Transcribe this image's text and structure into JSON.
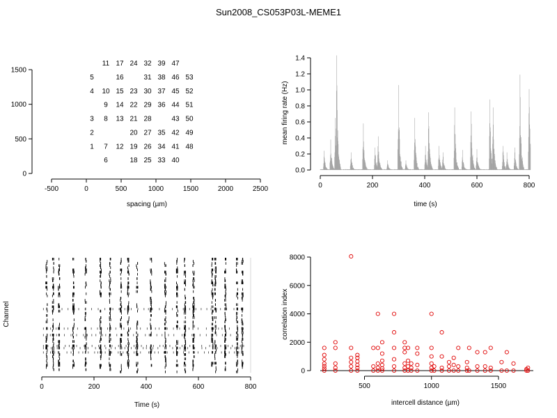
{
  "figure_title": "Sun2008_CS053P03L-MEME1",
  "chart_data": [
    {
      "type": "scatter",
      "panel": "electrode-layout",
      "xlabel": "spacing (µm)",
      "ylabel": "",
      "xlim": [
        -500,
        2500
      ],
      "ylim": [
        0,
        1500
      ],
      "xticks": [
        -500,
        0,
        500,
        1000,
        1500,
        2000,
        2500
      ],
      "yticks": [
        0,
        500,
        1000,
        1500
      ],
      "grid": false,
      "electrodes": [
        {
          "label": "1",
          "x": 200,
          "y": 400
        },
        {
          "label": "2",
          "x": 200,
          "y": 600
        },
        {
          "label": "3",
          "x": 200,
          "y": 800
        },
        {
          "label": "4",
          "x": 200,
          "y": 1200
        },
        {
          "label": "5",
          "x": 200,
          "y": 1400
        },
        {
          "label": "6",
          "x": 400,
          "y": 200
        },
        {
          "label": "7",
          "x": 400,
          "y": 400
        },
        {
          "label": "8",
          "x": 400,
          "y": 800
        },
        {
          "label": "9",
          "x": 400,
          "y": 1000
        },
        {
          "label": "10",
          "x": 400,
          "y": 1200
        },
        {
          "label": "11",
          "x": 400,
          "y": 1600
        },
        {
          "label": "12",
          "x": 600,
          "y": 400
        },
        {
          "label": "13",
          "x": 600,
          "y": 800
        },
        {
          "label": "14",
          "x": 600,
          "y": 1000
        },
        {
          "label": "15",
          "x": 600,
          "y": 1200
        },
        {
          "label": "16",
          "x": 600,
          "y": 1400
        },
        {
          "label": "17",
          "x": 600,
          "y": 1600
        },
        {
          "label": "18",
          "x": 800,
          "y": 200
        },
        {
          "label": "19",
          "x": 800,
          "y": 400
        },
        {
          "label": "20",
          "x": 800,
          "y": 600
        },
        {
          "label": "21",
          "x": 800,
          "y": 800
        },
        {
          "label": "22",
          "x": 800,
          "y": 1000
        },
        {
          "label": "23",
          "x": 800,
          "y": 1200
        },
        {
          "label": "24",
          "x": 800,
          "y": 1600
        },
        {
          "label": "25",
          "x": 1000,
          "y": 200
        },
        {
          "label": "26",
          "x": 1000,
          "y": 400
        },
        {
          "label": "27",
          "x": 1000,
          "y": 600
        },
        {
          "label": "28",
          "x": 1000,
          "y": 800
        },
        {
          "label": "29",
          "x": 1000,
          "y": 1000
        },
        {
          "label": "30",
          "x": 1000,
          "y": 1200
        },
        {
          "label": "31",
          "x": 1000,
          "y": 1400
        },
        {
          "label": "32",
          "x": 1000,
          "y": 1600
        },
        {
          "label": "33",
          "x": 1200,
          "y": 200
        },
        {
          "label": "34",
          "x": 1200,
          "y": 400
        },
        {
          "label": "35",
          "x": 1200,
          "y": 600
        },
        {
          "label": "36",
          "x": 1200,
          "y": 1000
        },
        {
          "label": "37",
          "x": 1200,
          "y": 1200
        },
        {
          "label": "38",
          "x": 1200,
          "y": 1400
        },
        {
          "label": "39",
          "x": 1200,
          "y": 1600
        },
        {
          "label": "40",
          "x": 1400,
          "y": 200
        },
        {
          "label": "41",
          "x": 1400,
          "y": 400
        },
        {
          "label": "42",
          "x": 1400,
          "y": 600
        },
        {
          "label": "43",
          "x": 1400,
          "y": 800
        },
        {
          "label": "44",
          "x": 1400,
          "y": 1000
        },
        {
          "label": "45",
          "x": 1400,
          "y": 1200
        },
        {
          "label": "46",
          "x": 1400,
          "y": 1400
        },
        {
          "label": "47",
          "x": 1400,
          "y": 1600
        },
        {
          "label": "48",
          "x": 1600,
          "y": 400
        },
        {
          "label": "49",
          "x": 1600,
          "y": 600
        },
        {
          "label": "50",
          "x": 1600,
          "y": 800
        },
        {
          "label": "51",
          "x": 1600,
          "y": 1000
        },
        {
          "label": "52",
          "x": 1600,
          "y": 1200
        },
        {
          "label": "53",
          "x": 1600,
          "y": 1400
        }
      ]
    },
    {
      "type": "bar",
      "panel": "firing-rate",
      "xlabel": "time (s)",
      "ylabel": "mean firing rate (Hz)",
      "xlim": [
        0,
        805
      ],
      "ylim": [
        0,
        1.4
      ],
      "xticks": [
        0,
        200,
        400,
        600,
        800
      ],
      "yticks": [
        0.0,
        0.2,
        0.4,
        0.6,
        0.8,
        1.0,
        1.2,
        1.4
      ],
      "grid": false,
      "color": "#a0a0a0",
      "bin_width_s": 1,
      "bursts": [
        {
          "time": 15,
          "peak": 0.24
        },
        {
          "time": 40,
          "peak": 0.38
        },
        {
          "time": 58,
          "peak": 0.65
        },
        {
          "time": 63,
          "peak": 1.43
        },
        {
          "time": 118,
          "peak": 0.22
        },
        {
          "time": 165,
          "peak": 0.58
        },
        {
          "time": 210,
          "peak": 0.28
        },
        {
          "time": 222,
          "peak": 0.42
        },
        {
          "time": 258,
          "peak": 0.12
        },
        {
          "time": 300,
          "peak": 1.06
        },
        {
          "time": 328,
          "peak": 0.12
        },
        {
          "time": 362,
          "peak": 0.65
        },
        {
          "time": 403,
          "peak": 0.3
        },
        {
          "time": 415,
          "peak": 0.72
        },
        {
          "time": 455,
          "peak": 0.3
        },
        {
          "time": 470,
          "peak": 0.22
        },
        {
          "time": 515,
          "peak": 0.78
        },
        {
          "time": 545,
          "peak": 0.25
        },
        {
          "time": 578,
          "peak": 0.73
        },
        {
          "time": 600,
          "peak": 0.26
        },
        {
          "time": 650,
          "peak": 0.88
        },
        {
          "time": 662,
          "peak": 0.78
        },
        {
          "time": 700,
          "peak": 0.3
        },
        {
          "time": 715,
          "peak": 0.22
        },
        {
          "time": 745,
          "peak": 0.28
        },
        {
          "time": 765,
          "peak": 1.19
        },
        {
          "time": 800,
          "peak": 1.01
        }
      ]
    },
    {
      "type": "scatter",
      "panel": "raster",
      "xlabel": "Time (s)",
      "ylabel": "Channel",
      "xlim": [
        0,
        800
      ],
      "xticks": [
        0,
        200,
        400,
        600,
        800
      ],
      "channels": 53,
      "grid": false,
      "burst_times": [
        15,
        40,
        63,
        118,
        165,
        222,
        258,
        300,
        328,
        362,
        415,
        470,
        515,
        545,
        578,
        650,
        662,
        700,
        745,
        765
      ]
    },
    {
      "type": "scatter",
      "panel": "correlation",
      "xlabel": "intercell distance (µm)",
      "ylabel": "correlation index",
      "xlim": [
        170,
        1760
      ],
      "ylim": [
        -100,
        8200
      ],
      "xticks": [
        500,
        1000,
        1500
      ],
      "yticks": [
        0,
        2000,
        4000,
        6000,
        8000
      ],
      "grid": false,
      "color": "#e00000",
      "marker": "open-circle",
      "reference_line": 0,
      "points": [
        {
          "x": 200,
          "y": 0
        },
        {
          "x": 200,
          "y": 150
        },
        {
          "x": 200,
          "y": 320
        },
        {
          "x": 200,
          "y": 500
        },
        {
          "x": 200,
          "y": 800
        },
        {
          "x": 200,
          "y": 1100
        },
        {
          "x": 200,
          "y": 1600
        },
        {
          "x": 283,
          "y": 0
        },
        {
          "x": 283,
          "y": 200
        },
        {
          "x": 283,
          "y": 500
        },
        {
          "x": 283,
          "y": 1600
        },
        {
          "x": 283,
          "y": 2000
        },
        {
          "x": 400,
          "y": 0
        },
        {
          "x": 400,
          "y": 300
        },
        {
          "x": 400,
          "y": 600
        },
        {
          "x": 400,
          "y": 900
        },
        {
          "x": 400,
          "y": 1600
        },
        {
          "x": 400,
          "y": 8050
        },
        {
          "x": 447,
          "y": 0
        },
        {
          "x": 447,
          "y": 200
        },
        {
          "x": 447,
          "y": 400
        },
        {
          "x": 447,
          "y": 650
        },
        {
          "x": 447,
          "y": 900
        },
        {
          "x": 447,
          "y": 1100
        },
        {
          "x": 566,
          "y": 0
        },
        {
          "x": 566,
          "y": 300
        },
        {
          "x": 566,
          "y": 1600
        },
        {
          "x": 600,
          "y": 0
        },
        {
          "x": 600,
          "y": 200
        },
        {
          "x": 600,
          "y": 500
        },
        {
          "x": 600,
          "y": 1600
        },
        {
          "x": 600,
          "y": 4000
        },
        {
          "x": 632,
          "y": 0
        },
        {
          "x": 632,
          "y": 150
        },
        {
          "x": 632,
          "y": 400
        },
        {
          "x": 632,
          "y": 700
        },
        {
          "x": 632,
          "y": 1200
        },
        {
          "x": 632,
          "y": 2000
        },
        {
          "x": 721,
          "y": 0
        },
        {
          "x": 721,
          "y": 300
        },
        {
          "x": 721,
          "y": 800
        },
        {
          "x": 721,
          "y": 1600
        },
        {
          "x": 721,
          "y": 2700
        },
        {
          "x": 721,
          "y": 4000
        },
        {
          "x": 800,
          "y": 0
        },
        {
          "x": 800,
          "y": 200
        },
        {
          "x": 800,
          "y": 500
        },
        {
          "x": 800,
          "y": 1300
        },
        {
          "x": 800,
          "y": 1600
        },
        {
          "x": 800,
          "y": 2000
        },
        {
          "x": 825,
          "y": 0
        },
        {
          "x": 825,
          "y": 300
        },
        {
          "x": 825,
          "y": 700
        },
        {
          "x": 825,
          "y": 1600
        },
        {
          "x": 849,
          "y": 0
        },
        {
          "x": 849,
          "y": 200
        },
        {
          "x": 849,
          "y": 500
        },
        {
          "x": 894,
          "y": 0
        },
        {
          "x": 894,
          "y": 400
        },
        {
          "x": 894,
          "y": 1200
        },
        {
          "x": 894,
          "y": 1600
        },
        {
          "x": 1000,
          "y": 0
        },
        {
          "x": 1000,
          "y": 200
        },
        {
          "x": 1000,
          "y": 500
        },
        {
          "x": 1000,
          "y": 1000
        },
        {
          "x": 1000,
          "y": 1600
        },
        {
          "x": 1000,
          "y": 4000
        },
        {
          "x": 1020,
          "y": 0
        },
        {
          "x": 1020,
          "y": 300
        },
        {
          "x": 1077,
          "y": 0
        },
        {
          "x": 1077,
          "y": 200
        },
        {
          "x": 1077,
          "y": 1000
        },
        {
          "x": 1077,
          "y": 2700
        },
        {
          "x": 1131,
          "y": 0
        },
        {
          "x": 1131,
          "y": 300
        },
        {
          "x": 1131,
          "y": 600
        },
        {
          "x": 1166,
          "y": 0
        },
        {
          "x": 1166,
          "y": 400
        },
        {
          "x": 1166,
          "y": 900
        },
        {
          "x": 1200,
          "y": 0
        },
        {
          "x": 1200,
          "y": 300
        },
        {
          "x": 1200,
          "y": 1600
        },
        {
          "x": 1265,
          "y": 0
        },
        {
          "x": 1265,
          "y": 200
        },
        {
          "x": 1265,
          "y": 600
        },
        {
          "x": 1281,
          "y": 0
        },
        {
          "x": 1281,
          "y": 1600
        },
        {
          "x": 1342,
          "y": 0
        },
        {
          "x": 1342,
          "y": 300
        },
        {
          "x": 1342,
          "y": 1300
        },
        {
          "x": 1400,
          "y": 0
        },
        {
          "x": 1400,
          "y": 300
        },
        {
          "x": 1400,
          "y": 1300
        },
        {
          "x": 1442,
          "y": 0
        },
        {
          "x": 1442,
          "y": 200
        },
        {
          "x": 1442,
          "y": 1600
        },
        {
          "x": 1523,
          "y": 0
        },
        {
          "x": 1523,
          "y": 600
        },
        {
          "x": 1562,
          "y": 0
        },
        {
          "x": 1562,
          "y": 1300
        },
        {
          "x": 1612,
          "y": 0
        },
        {
          "x": 1612,
          "y": 500
        },
        {
          "x": 1709,
          "y": 0
        },
        {
          "x": 1709,
          "y": 100
        },
        {
          "x": 1720,
          "y": 0
        },
        {
          "x": 1720,
          "y": 200
        }
      ]
    }
  ]
}
